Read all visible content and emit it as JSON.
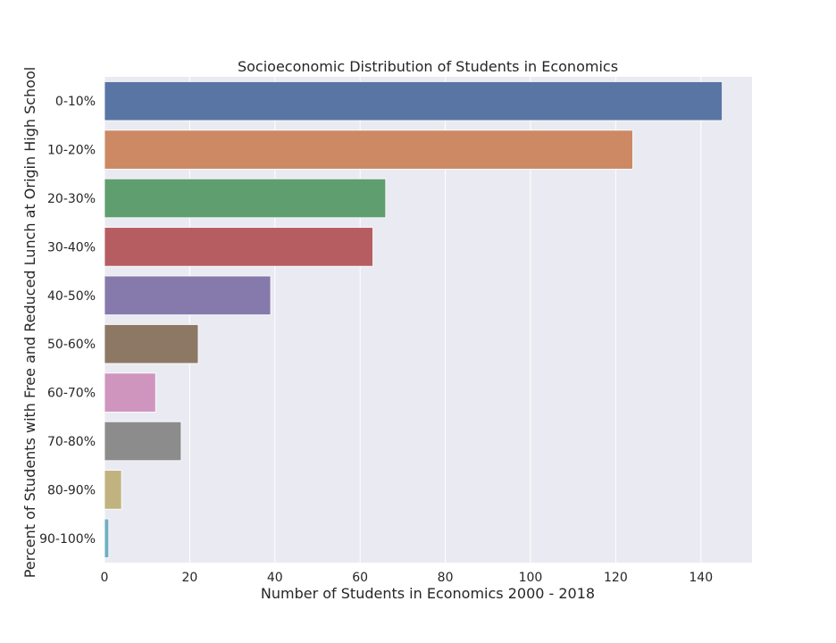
{
  "chart_data": {
    "type": "bar",
    "orientation": "horizontal",
    "title": "Socioeconomic Distribution of Students in Economics",
    "xlabel": "Number of Students in Economics 2000 - 2018",
    "ylabel": "Percent of Students with Free and Reduced Lunch at Origin High School",
    "categories": [
      "0-10%",
      "10-20%",
      "20-30%",
      "30-40%",
      "40-50%",
      "50-60%",
      "60-70%",
      "70-80%",
      "80-90%",
      "90-100%"
    ],
    "values": [
      145,
      124,
      66,
      63,
      39,
      22,
      12,
      18,
      4,
      1
    ],
    "colors": [
      "#5975a4",
      "#cc8963",
      "#5f9e6e",
      "#b55d60",
      "#857aab",
      "#8d7866",
      "#d095bf",
      "#8c8c8c",
      "#c1b37f",
      "#6fb0c0"
    ],
    "xlim": [
      0,
      152
    ],
    "xticks": [
      0,
      20,
      40,
      60,
      80,
      100,
      120,
      140
    ],
    "grid": true,
    "background": "#eaeaf2"
  }
}
